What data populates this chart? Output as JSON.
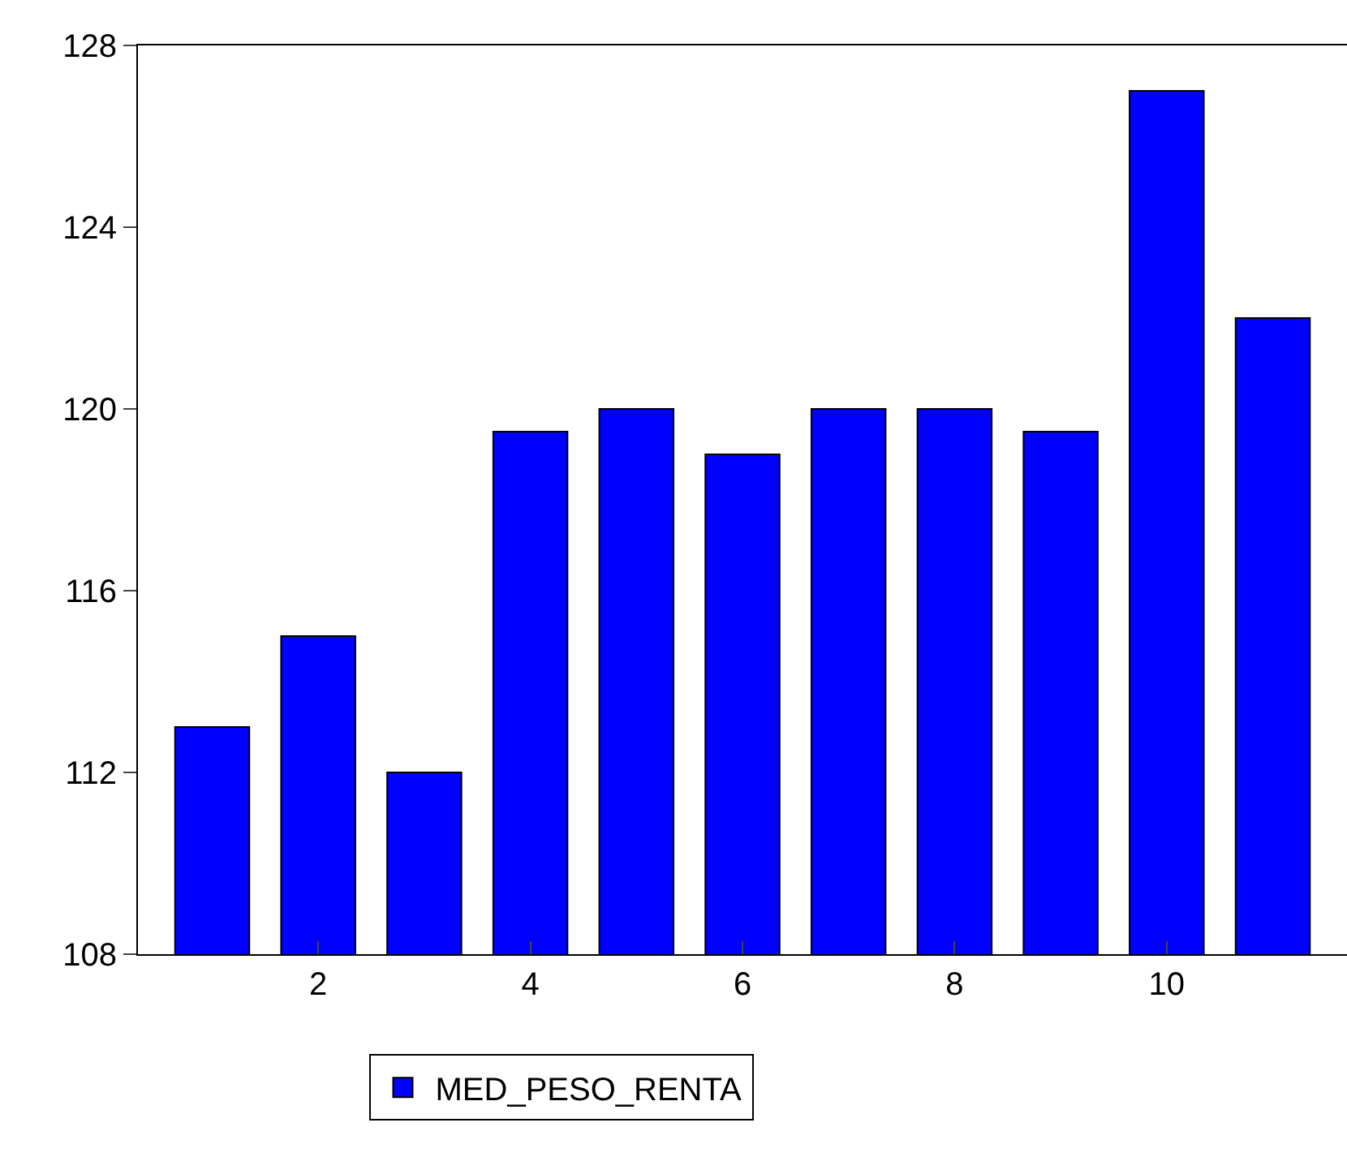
{
  "chart_data": {
    "type": "bar",
    "categories": [
      null,
      "2",
      null,
      "4",
      null,
      "6",
      null,
      "8",
      null,
      "10",
      null
    ],
    "series": [
      {
        "name": "MED_PESO_RENTA",
        "color": "#0000ff",
        "values": [
          113,
          115,
          112,
          119.5,
          120,
          119,
          120,
          120,
          119.5,
          127,
          122
        ]
      }
    ],
    "ylim": [
      108,
      128
    ],
    "yticks": [
      108,
      112,
      116,
      120,
      124,
      128
    ],
    "legend": "bottom"
  }
}
